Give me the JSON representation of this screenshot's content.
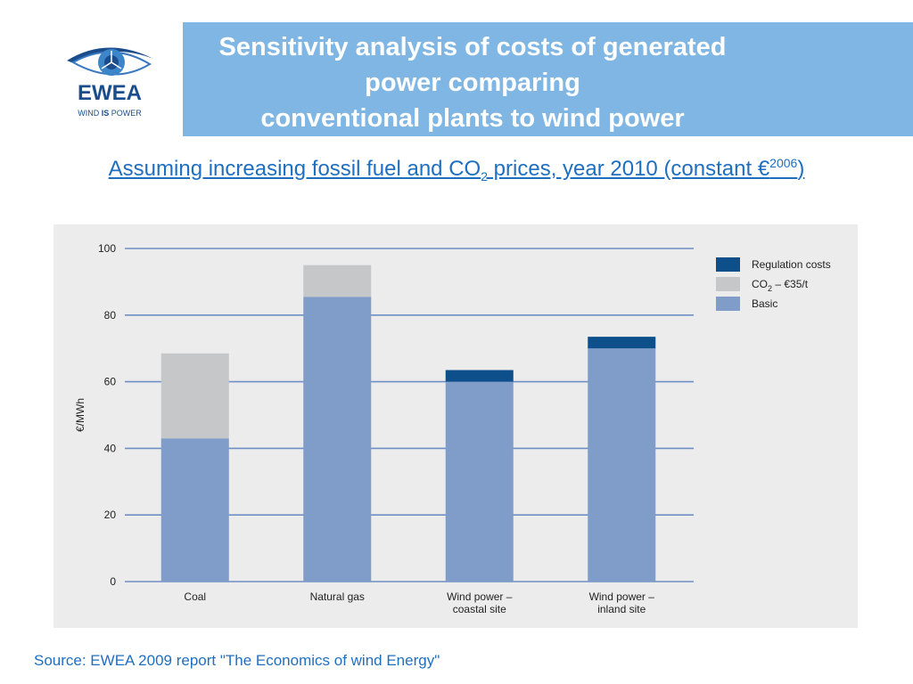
{
  "logo": {
    "name": "EWEA",
    "tagline_pre": "WIND ",
    "tagline_em": "IS",
    "tagline_post": " POWER"
  },
  "title_lines": [
    "Sensitivity analysis of costs of generated",
    "power comparing",
    "conventional plants to wind power"
  ],
  "subtitle": {
    "pre": "Assuming increasing fossil fuel and CO",
    "sub": "2",
    "mid": " prices, year 2010 (constant €",
    "sup": "2006",
    "post": ")"
  },
  "source": "Source: EWEA 2009 report \"The Economics of wind Energy\"",
  "chart_data": {
    "type": "bar",
    "stacked": true,
    "categories": [
      [
        "Coal"
      ],
      [
        "Natural gas"
      ],
      [
        "Wind power –",
        "coastal site"
      ],
      [
        "Wind power –",
        "inland site"
      ]
    ],
    "series": [
      {
        "name": "Basic",
        "color": "#7f9dc8",
        "values": [
          43,
          85.5,
          60,
          70
        ]
      },
      {
        "name": "CO2 – €35/t",
        "color": "#c6c7c9",
        "values": [
          25.5,
          9.5,
          0,
          0
        ]
      },
      {
        "name": "Regulation costs",
        "color": "#0d4f8b",
        "values": [
          0,
          0,
          3.5,
          3.5
        ]
      }
    ],
    "legend_order": [
      "Regulation costs",
      "CO2 – €35/t",
      "Basic"
    ],
    "legend_labels": {
      "Regulation costs": {
        "text": "Regulation costs"
      },
      "CO2 – €35/t": {
        "pre": "CO",
        "sub": "2",
        "post": " – €35/t"
      },
      "Basic": {
        "text": "Basic"
      }
    },
    "ylabel": "€/MWh",
    "ylim": [
      0,
      100
    ],
    "yticks": [
      0,
      20,
      40,
      60,
      80,
      100
    ],
    "grid": true,
    "grid_color": "#6f8fc4",
    "legend_position": "right"
  }
}
